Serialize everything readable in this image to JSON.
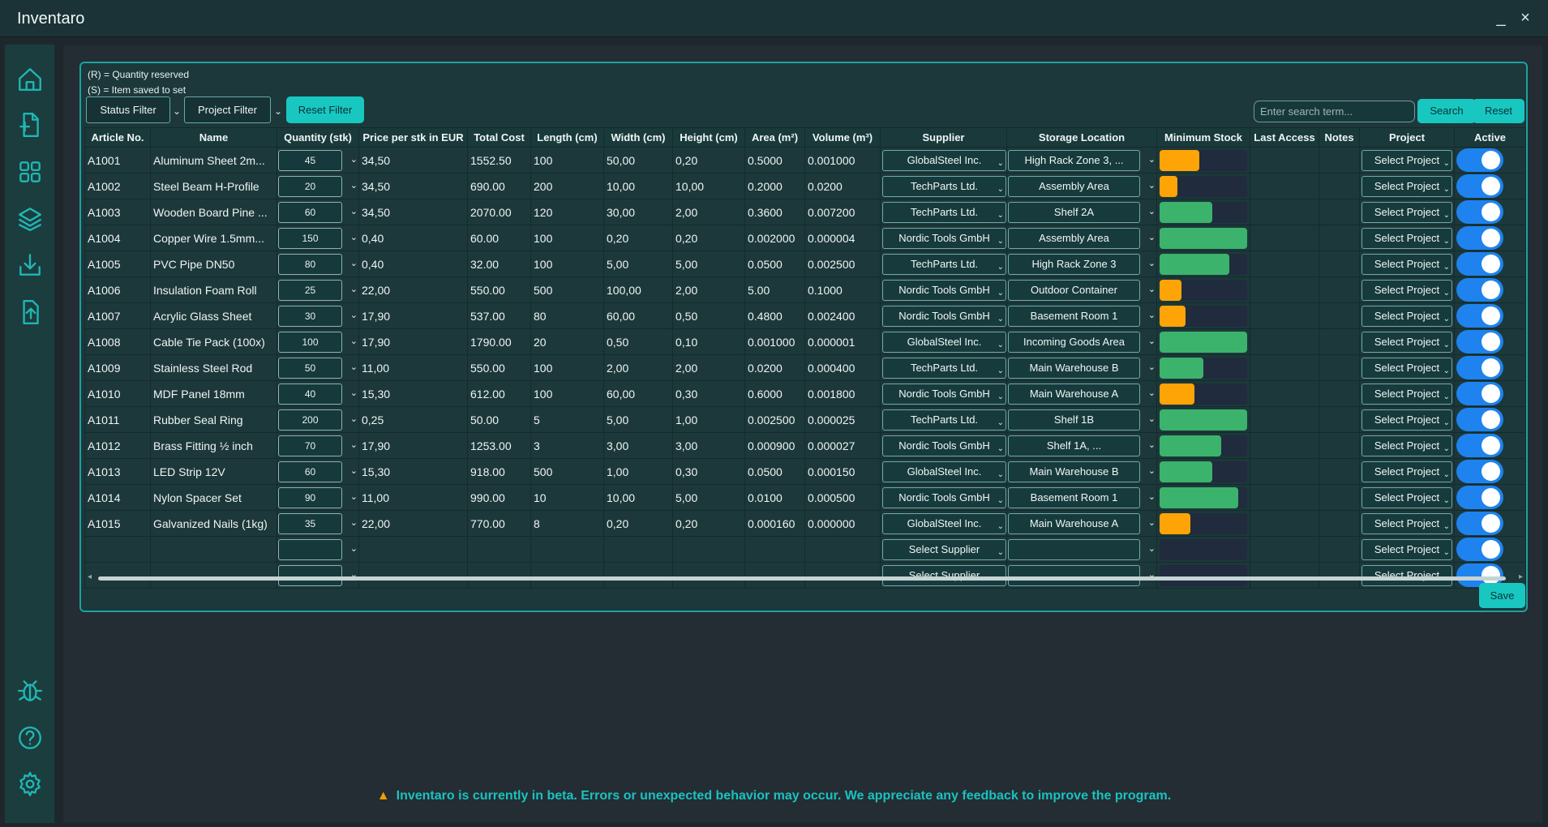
{
  "app": {
    "title": "Inventaro",
    "minimize": "_",
    "close": "×"
  },
  "sidebar": [
    "home",
    "add-file",
    "grid",
    "layers",
    "import",
    "export",
    "bug",
    "help",
    "settings"
  ],
  "legend": {
    "reserved": "(R) = Quantity reserved",
    "saved": "(S) = Item saved to set"
  },
  "filters": {
    "status": "Status Filter",
    "project": "Project Filter",
    "reset": "Reset Filter"
  },
  "search": {
    "placeholder": "Enter search term...",
    "search": "Search",
    "reset": "Reset"
  },
  "headers": [
    "Article No.",
    "Name",
    "Quantity (stk)",
    "Price per stk in EUR",
    "Total Cost",
    "Length (cm)",
    "Width (cm)",
    "Height (cm)",
    "Area (m²)",
    "Volume (m³)",
    "Supplier",
    "Storage Location",
    "Minimum Stock",
    "Last Access",
    "Notes",
    "Project",
    "Active"
  ],
  "rows": [
    {
      "article": "A1001",
      "name": "Aluminum Sheet 2m...",
      "qty": "45",
      "price": "34,50",
      "total": "1552.50",
      "length": "100",
      "width": "50,00",
      "height": "0,20",
      "area": "0.5000",
      "volume": "0.001000",
      "supplier": "GlobalSteel Inc.",
      "location": "High Rack Zone 3, ...",
      "min": 0.45,
      "color": "#ffa407",
      "project": "Select Project"
    },
    {
      "article": "A1002",
      "name": "Steel Beam H-Profile",
      "qty": "20",
      "price": "34,50",
      "total": "690.00",
      "length": "200",
      "width": "10,00",
      "height": "10,00",
      "area": "0.2000",
      "volume": "0.0200",
      "supplier": "TechParts Ltd.",
      "location": "Assembly Area",
      "min": 0.2,
      "color": "#ffa407",
      "project": "Select Project"
    },
    {
      "article": "A1003",
      "name": "Wooden Board Pine ...",
      "qty": "60",
      "price": "34,50",
      "total": "2070.00",
      "length": "120",
      "width": "30,00",
      "height": "2,00",
      "area": "0.3600",
      "volume": "0.007200",
      "supplier": "TechParts Ltd.",
      "location": "Shelf 2A",
      "min": 0.6,
      "color": "#3bb36c",
      "project": "Select Project"
    },
    {
      "article": "A1004",
      "name": "Copper Wire 1.5mm...",
      "qty": "150",
      "price": "0,40",
      "total": "60.00",
      "length": "100",
      "width": "0,20",
      "height": "0,20",
      "area": "0.002000",
      "volume": "0.000004",
      "supplier": "Nordic Tools GmbH",
      "location": "Assembly Area",
      "min": 1,
      "color": "#3bb36c",
      "project": "Select Project"
    },
    {
      "article": "A1005",
      "name": "PVC Pipe DN50",
      "qty": "80",
      "price": "0,40",
      "total": "32.00",
      "length": "100",
      "width": "5,00",
      "height": "5,00",
      "area": "0.0500",
      "volume": "0.002500",
      "supplier": "TechParts Ltd.",
      "location": "High Rack Zone 3",
      "min": 0.8,
      "color": "#3bb36c",
      "project": "Select Project"
    },
    {
      "article": "A1006",
      "name": "Insulation Foam Roll",
      "qty": "25",
      "price": "22,00",
      "total": "550.00",
      "length": "500",
      "width": "100,00",
      "height": "2,00",
      "area": "5.00",
      "volume": "0.1000",
      "supplier": "Nordic Tools GmbH",
      "location": "Outdoor Container",
      "min": 0.25,
      "color": "#ffa407",
      "project": "Select Project"
    },
    {
      "article": "A1007",
      "name": "Acrylic Glass Sheet",
      "qty": "30",
      "price": "17,90",
      "total": "537.00",
      "length": "80",
      "width": "60,00",
      "height": "0,50",
      "area": "0.4800",
      "volume": "0.002400",
      "supplier": "Nordic Tools GmbH",
      "location": "Basement Room 1",
      "min": 0.3,
      "color": "#ffa407",
      "project": "Select Project"
    },
    {
      "article": "A1008",
      "name": "Cable Tie Pack (100x)",
      "qty": "100",
      "price": "17,90",
      "total": "1790.00",
      "length": "20",
      "width": "0,50",
      "height": "0,10",
      "area": "0.001000",
      "volume": "0.000001",
      "supplier": "GlobalSteel Inc.",
      "location": "Incoming Goods Area",
      "min": 1,
      "color": "#3bb36c",
      "project": "Select Project"
    },
    {
      "article": "A1009",
      "name": "Stainless Steel Rod",
      "qty": "50",
      "price": "11,00",
      "total": "550.00",
      "length": "100",
      "width": "2,00",
      "height": "2,00",
      "area": "0.0200",
      "volume": "0.000400",
      "supplier": "TechParts Ltd.",
      "location": "Main Warehouse B",
      "min": 0.5,
      "color": "#3bb36c",
      "project": "Select Project"
    },
    {
      "article": "A1010",
      "name": "MDF Panel 18mm",
      "qty": "40",
      "price": "15,30",
      "total": "612.00",
      "length": "100",
      "width": "60,00",
      "height": "0,30",
      "area": "0.6000",
      "volume": "0.001800",
      "supplier": "Nordic Tools GmbH",
      "location": "Main Warehouse A",
      "min": 0.4,
      "color": "#ffa407",
      "project": "Select Project"
    },
    {
      "article": "A1011",
      "name": "Rubber Seal Ring",
      "qty": "200",
      "price": "0,25",
      "total": "50.00",
      "length": "5",
      "width": "5,00",
      "height": "1,00",
      "area": "0.002500",
      "volume": "0.000025",
      "supplier": "TechParts Ltd.",
      "location": "Shelf 1B",
      "min": 1,
      "color": "#3bb36c",
      "project": "Select Project"
    },
    {
      "article": "A1012",
      "name": "Brass Fitting ½ inch",
      "qty": "70",
      "price": "17,90",
      "total": "1253.00",
      "length": "3",
      "width": "3,00",
      "height": "3,00",
      "area": "0.000900",
      "volume": "0.000027",
      "supplier": "Nordic Tools GmbH",
      "location": "Shelf 1A, ...",
      "min": 0.7,
      "color": "#3bb36c",
      "project": "Select Project"
    },
    {
      "article": "A1013",
      "name": "LED Strip 12V",
      "qty": "60",
      "price": "15,30",
      "total": "918.00",
      "length": "500",
      "width": "1,00",
      "height": "0,30",
      "area": "0.0500",
      "volume": "0.000150",
      "supplier": "GlobalSteel Inc.",
      "location": "Main Warehouse B",
      "min": 0.6,
      "color": "#3bb36c",
      "project": "Select Project"
    },
    {
      "article": "A1014",
      "name": "Nylon Spacer Set",
      "qty": "90",
      "price": "11,00",
      "total": "990.00",
      "length": "10",
      "width": "10,00",
      "height": "5,00",
      "area": "0.0100",
      "volume": "0.000500",
      "supplier": "Nordic Tools GmbH",
      "location": "Basement Room 1",
      "min": 0.9,
      "color": "#3bb36c",
      "project": "Select Project"
    },
    {
      "article": "A1015",
      "name": "Galvanized Nails (1kg)",
      "qty": "35",
      "price": "22,00",
      "total": "770.00",
      "length": "8",
      "width": "0,20",
      "height": "0,20",
      "area": "0.000160",
      "volume": "0.000000",
      "supplier": "GlobalSteel Inc.",
      "location": "Main Warehouse A",
      "min": 0.35,
      "color": "#ffa407",
      "project": "Select Project"
    },
    {
      "article": "",
      "name": "",
      "qty": "",
      "price": "",
      "total": "",
      "length": "",
      "width": "",
      "height": "",
      "area": "",
      "volume": "",
      "supplier": "Select Supplier",
      "location": "",
      "min": 0,
      "color": "#3bb36c",
      "project": "Select Project"
    },
    {
      "article": "",
      "name": "",
      "qty": "",
      "price": "",
      "total": "",
      "length": "",
      "width": "",
      "height": "",
      "area": "",
      "volume": "",
      "supplier": "Select Supplier",
      "location": "",
      "min": 0,
      "color": "#3bb36c",
      "project": "Select Project"
    }
  ],
  "save": "Save",
  "footer": "Inventaro is currently in beta. Errors or unexpected behavior may occur. We appreciate any feedback to improve the program."
}
